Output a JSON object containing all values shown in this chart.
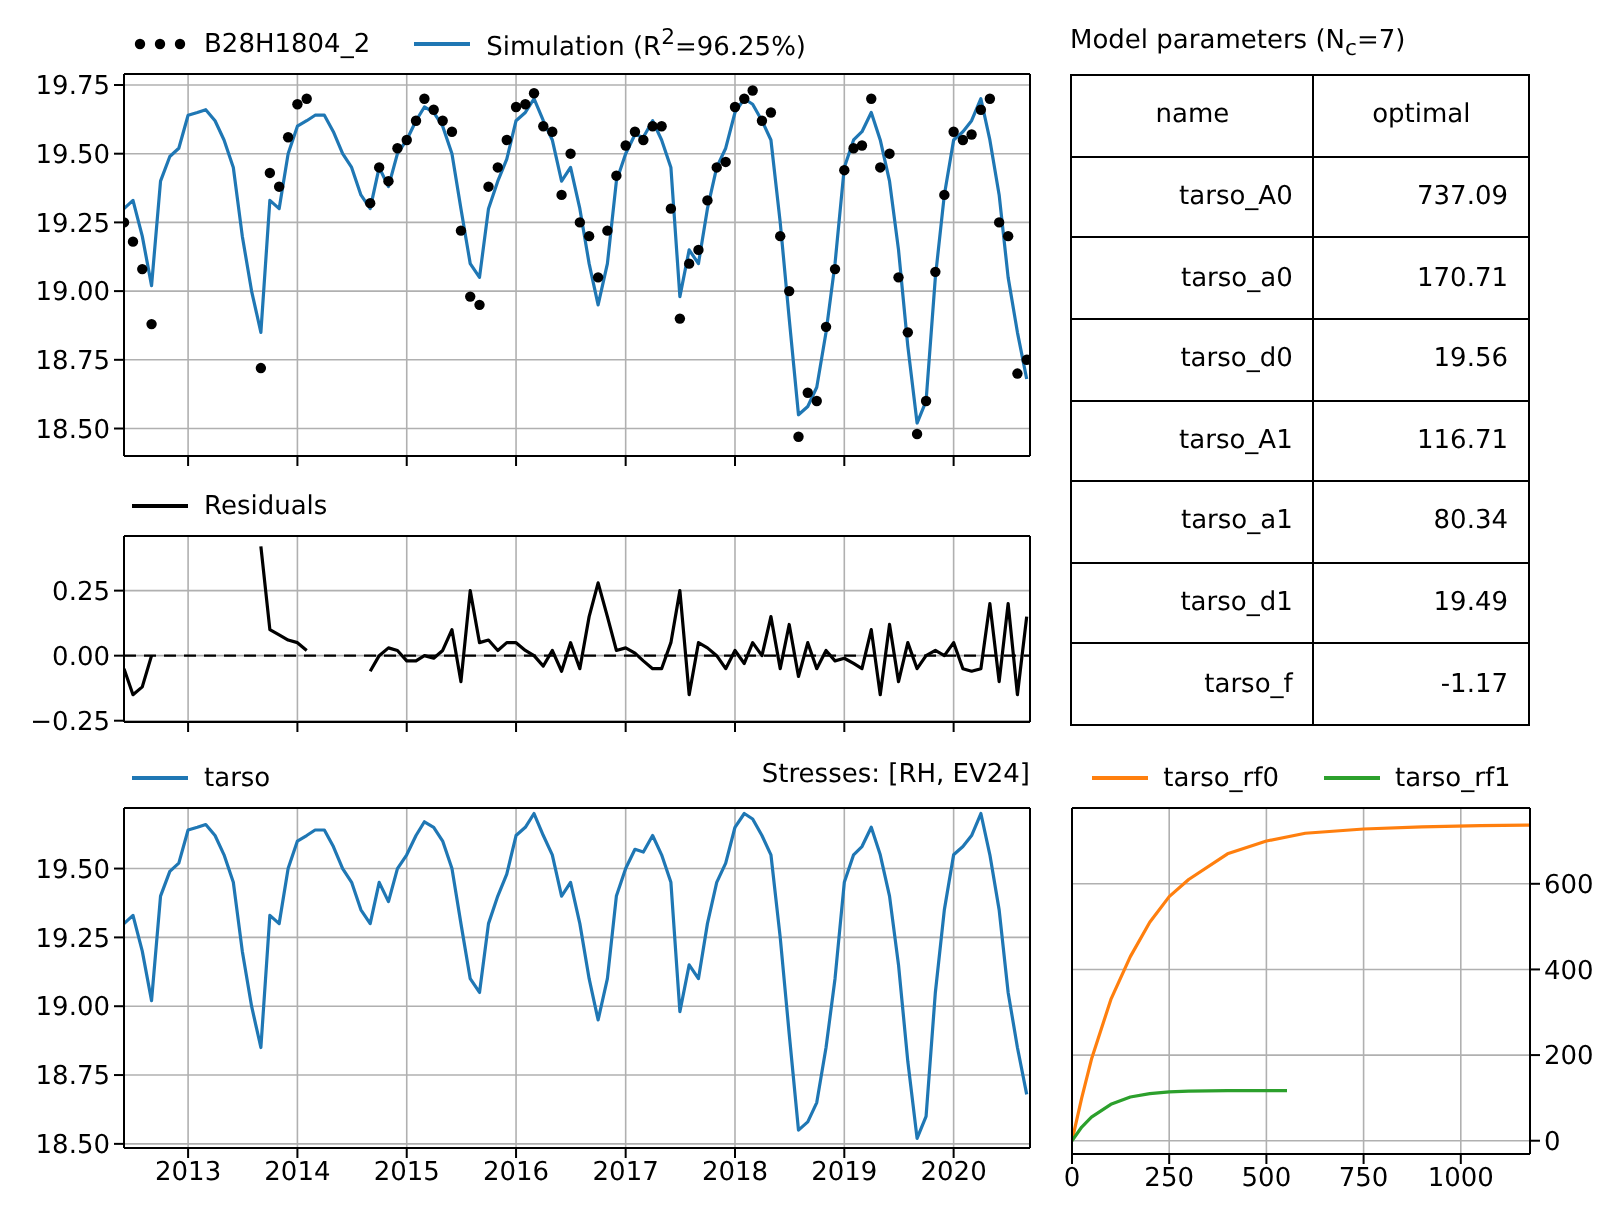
{
  "chart_data": [
    {
      "type": "line",
      "legend": "top left",
      "grid": true,
      "tick_labels": "y",
      "xlim": [
        "2012-06-01",
        "2020-09-12"
      ],
      "xticks": [
        "2013",
        "2014",
        "2015",
        "2016",
        "2017",
        "2018",
        "2019",
        "2020"
      ],
      "ylim": [
        18.4,
        19.79
      ],
      "yticks": [
        {
          "value": 18.5,
          "label": "18.50"
        },
        18.75,
        {
          "value": 19,
          "label": "19.00"
        },
        19.25,
        {
          "value": 19.5,
          "label": "19.50"
        },
        19.75
      ],
      "x": [
        "2012-06",
        "2012-07",
        "2012-08",
        "2012-09",
        "2012-10",
        "2012-11",
        "2012-12",
        "2013-01",
        "2013-02",
        "2013-03",
        "2013-04",
        "2013-05",
        "2013-06",
        "2013-07",
        "2013-08",
        "2013-09",
        "2013-10",
        "2013-11",
        "2013-12",
        "2014-01",
        "2014-02",
        "2014-03",
        "2014-04",
        "2014-05",
        "2014-06",
        "2014-07",
        "2014-08",
        "2014-09",
        "2014-10",
        "2014-11",
        "2014-12",
        "2015-01",
        "2015-02",
        "2015-03",
        "2015-04",
        "2015-05",
        "2015-06",
        "2015-07",
        "2015-08",
        "2015-09",
        "2015-10",
        "2015-11",
        "2015-12",
        "2016-01",
        "2016-02",
        "2016-03",
        "2016-04",
        "2016-05",
        "2016-06",
        "2016-07",
        "2016-08",
        "2016-09",
        "2016-10",
        "2016-11",
        "2016-12",
        "2017-01",
        "2017-02",
        "2017-03",
        "2017-04",
        "2017-05",
        "2017-06",
        "2017-07",
        "2017-08",
        "2017-09",
        "2017-10",
        "2017-11",
        "2017-12",
        "2018-01",
        "2018-02",
        "2018-03",
        "2018-04",
        "2018-05",
        "2018-06",
        "2018-07",
        "2018-08",
        "2018-09",
        "2018-10",
        "2018-11",
        "2018-12",
        "2019-01",
        "2019-02",
        "2019-03",
        "2019-04",
        "2019-05",
        "2019-06",
        "2019-07",
        "2019-08",
        "2019-09",
        "2019-10",
        "2019-11",
        "2019-12",
        "2020-01",
        "2020-02",
        "2020-03",
        "2020-04",
        "2020-05",
        "2020-06",
        "2020-07",
        "2020-08",
        "2020-09"
      ],
      "series": [
        {
          "name": "B28H1804_2",
          "type": "scatter",
          "marker": "circle",
          "color": "#000000",
          "x": [
            "2012-06",
            "2012-07",
            "2012-08",
            "2012-09",
            "2013-09",
            "2013-10",
            "2013-11",
            "2013-12",
            "2014-01",
            "2014-02",
            "2014-09",
            "2014-10",
            "2014-11",
            "2014-12",
            "2015-01",
            "2015-02",
            "2015-03",
            "2015-04",
            "2015-05",
            "2015-06",
            "2015-07",
            "2015-08",
            "2015-09",
            "2015-10",
            "2015-11",
            "2015-12",
            "2016-01",
            "2016-02",
            "2016-03",
            "2016-04",
            "2016-05",
            "2016-06",
            "2016-07",
            "2016-08",
            "2016-09",
            "2016-10",
            "2016-11",
            "2016-12",
            "2017-01",
            "2017-02",
            "2017-03",
            "2017-04",
            "2017-05",
            "2017-06",
            "2017-07",
            "2017-08",
            "2017-09",
            "2017-10",
            "2017-11",
            "2017-12",
            "2018-01",
            "2018-02",
            "2018-03",
            "2018-04",
            "2018-05",
            "2018-06",
            "2018-07",
            "2018-08",
            "2018-09",
            "2018-10",
            "2018-11",
            "2018-12",
            "2019-01",
            "2019-02",
            "2019-03",
            "2019-04",
            "2019-05",
            "2019-06",
            "2019-07",
            "2019-08",
            "2019-09",
            "2019-10",
            "2019-11",
            "2019-12",
            "2020-01",
            "2020-02",
            "2020-03",
            "2020-04",
            "2020-05",
            "2020-06",
            "2020-07",
            "2020-08",
            "2020-09"
          ],
          "values": [
            19.25,
            19.18,
            19.08,
            18.88,
            18.72,
            19.43,
            19.38,
            19.56,
            19.68,
            19.7,
            19.32,
            19.45,
            19.4,
            19.52,
            19.55,
            19.62,
            19.7,
            19.66,
            19.62,
            19.58,
            19.22,
            18.98,
            18.95,
            19.38,
            19.45,
            19.55,
            19.67,
            19.68,
            19.72,
            19.6,
            19.58,
            19.35,
            19.5,
            19.25,
            19.2,
            19.05,
            19.22,
            19.42,
            19.53,
            19.58,
            19.55,
            19.6,
            19.6,
            19.3,
            18.9,
            19.1,
            19.15,
            19.33,
            19.45,
            19.47,
            19.67,
            19.7,
            19.73,
            19.62,
            19.65,
            19.2,
            19.0,
            18.47,
            18.63,
            18.6,
            18.87,
            19.08,
            19.44,
            19.52,
            19.53,
            19.7,
            19.45,
            19.5,
            19.05,
            18.85,
            18.48,
            18.6,
            19.07,
            19.35,
            19.58,
            19.55,
            19.57,
            19.66,
            19.7,
            19.25,
            19.2,
            18.7,
            18.75
          ]
        },
        {
          "name": "Simulation (R$^{2}$=96.25%)",
          "type": "line",
          "color": "#1f77b4",
          "values": [
            19.3,
            19.33,
            19.2,
            19.02,
            19.4,
            19.49,
            19.52,
            19.64,
            19.65,
            19.66,
            19.62,
            19.55,
            19.45,
            19.2,
            19.0,
            18.85,
            19.33,
            19.3,
            19.5,
            19.6,
            19.62,
            19.64,
            19.64,
            19.58,
            19.5,
            19.45,
            19.35,
            19.3,
            19.45,
            19.38,
            19.5,
            19.55,
            19.62,
            19.67,
            19.65,
            19.6,
            19.5,
            19.3,
            19.1,
            19.05,
            19.3,
            19.4,
            19.48,
            19.62,
            19.65,
            19.7,
            19.62,
            19.55,
            19.4,
            19.45,
            19.3,
            19.1,
            18.95,
            19.1,
            19.4,
            19.5,
            19.57,
            19.56,
            19.62,
            19.55,
            19.45,
            18.98,
            19.15,
            19.1,
            19.3,
            19.45,
            19.52,
            19.65,
            19.7,
            19.68,
            19.62,
            19.55,
            19.25,
            18.9,
            18.55,
            18.58,
            18.65,
            18.85,
            19.1,
            19.45,
            19.55,
            19.58,
            19.65,
            19.55,
            19.4,
            19.15,
            18.8,
            18.52,
            18.6,
            19.05,
            19.35,
            19.55,
            19.58,
            19.62,
            19.7,
            19.55,
            19.35,
            19.05,
            18.85,
            18.68
          ]
        }
      ]
    },
    {
      "type": "line",
      "legend": "top left",
      "grid": true,
      "tick_labels": "y",
      "xlim": [
        "2012-06-01",
        "2020-09-12"
      ],
      "xticks": [
        "2013",
        "2014",
        "2015",
        "2016",
        "2017",
        "2018",
        "2019",
        "2020"
      ],
      "ylim": [
        -0.255,
        0.46
      ],
      "yticks": [
        {
          "value": -0.25,
          "label": "−0.25"
        },
        {
          "value": 0,
          "label": "0.00"
        },
        0.25
      ],
      "ref_lines": [
        {
          "axis": "y",
          "value": 0,
          "color": "#000000",
          "line_style": "dashed"
        }
      ],
      "x": [
        "2012-06",
        "2012-07",
        "2012-08",
        "2012-09",
        "2012-10",
        "2012-11",
        "2012-12",
        "2013-01",
        "2013-02",
        "2013-03",
        "2013-04",
        "2013-05",
        "2013-06",
        "2013-07",
        "2013-08",
        "2013-09",
        "2013-10",
        "2013-11",
        "2013-12",
        "2014-01",
        "2014-02",
        "2014-03",
        "2014-04",
        "2014-05",
        "2014-06",
        "2014-07",
        "2014-08",
        "2014-09",
        "2014-10",
        "2014-11",
        "2014-12",
        "2015-01",
        "2015-02",
        "2015-03",
        "2015-04",
        "2015-05",
        "2015-06",
        "2015-07",
        "2015-08",
        "2015-09",
        "2015-10",
        "2015-11",
        "2015-12",
        "2016-01",
        "2016-02",
        "2016-03",
        "2016-04",
        "2016-05",
        "2016-06",
        "2016-07",
        "2016-08",
        "2016-09",
        "2016-10",
        "2016-11",
        "2016-12",
        "2017-01",
        "2017-02",
        "2017-03",
        "2017-04",
        "2017-05",
        "2017-06",
        "2017-07",
        "2017-08",
        "2017-09",
        "2017-10",
        "2017-11",
        "2017-12",
        "2018-01",
        "2018-02",
        "2018-03",
        "2018-04",
        "2018-05",
        "2018-06",
        "2018-07",
        "2018-08",
        "2018-09",
        "2018-10",
        "2018-11",
        "2018-12",
        "2019-01",
        "2019-02",
        "2019-03",
        "2019-04",
        "2019-05",
        "2019-06",
        "2019-07",
        "2019-08",
        "2019-09",
        "2019-10",
        "2019-11",
        "2019-12",
        "2020-01",
        "2020-02",
        "2020-03",
        "2020-04",
        "2020-05",
        "2020-06",
        "2020-07",
        "2020-08",
        "2020-09"
      ],
      "series": [
        {
          "name": "Residuals",
          "color": "#000000",
          "values": [
            -0.05,
            -0.15,
            -0.12,
            0.0,
            null,
            null,
            null,
            null,
            null,
            null,
            null,
            null,
            null,
            null,
            null,
            0.42,
            0.1,
            0.08,
            0.06,
            0.05,
            0.02,
            null,
            null,
            null,
            null,
            null,
            null,
            -0.06,
            0.0,
            0.03,
            0.02,
            -0.02,
            -0.02,
            0.0,
            -0.01,
            0.02,
            0.1,
            -0.1,
            0.25,
            0.05,
            0.06,
            0.02,
            0.05,
            0.05,
            0.02,
            0.0,
            -0.04,
            0.02,
            -0.06,
            0.05,
            -0.05,
            0.15,
            0.28,
            0.15,
            0.02,
            0.03,
            0.01,
            -0.02,
            -0.05,
            -0.05,
            0.05,
            0.25,
            -0.15,
            0.05,
            0.03,
            0.0,
            -0.05,
            0.02,
            -0.03,
            0.05,
            0.0,
            0.15,
            -0.05,
            0.12,
            -0.08,
            0.05,
            -0.05,
            0.02,
            -0.02,
            -0.01,
            -0.03,
            -0.05,
            0.1,
            -0.15,
            0.12,
            -0.1,
            0.05,
            -0.05,
            0.0,
            0.02,
            0.0,
            0.05,
            -0.05,
            -0.06,
            -0.05,
            0.2,
            -0.1,
            0.2,
            -0.15,
            0.15
          ]
        }
      ]
    },
    {
      "type": "other",
      "title": "Model parameters (N$_{c}$=7)",
      "annotations": [
        "name",
        "optimal",
        "tarso_A0",
        "737.09",
        "tarso_a0",
        "170.71",
        "tarso_d0",
        "19.56",
        "tarso_A1",
        "116.71",
        "tarso_a1",
        "80.34",
        "tarso_d1",
        "19.49",
        "tarso_f",
        "-1.17"
      ]
    },
    {
      "type": "line",
      "title": "Stresses: [RH, EV24]",
      "legend": "top left",
      "grid": true,
      "xlim": [
        "2012-06-01",
        "2020-09-12"
      ],
      "xticks": [
        "2013",
        "2014",
        "2015",
        "2016",
        "2017",
        "2018",
        "2019",
        "2020"
      ],
      "ylim": [
        18.485,
        19.72
      ],
      "yticks": [
        {
          "value": 18.5,
          "label": "18.50"
        },
        18.75,
        {
          "value": 19,
          "label": "19.00"
        },
        19.25,
        {
          "value": 19.5,
          "label": "19.50"
        }
      ],
      "x": [
        "2012-06",
        "2012-07",
        "2012-08",
        "2012-09",
        "2012-10",
        "2012-11",
        "2012-12",
        "2013-01",
        "2013-02",
        "2013-03",
        "2013-04",
        "2013-05",
        "2013-06",
        "2013-07",
        "2013-08",
        "2013-09",
        "2013-10",
        "2013-11",
        "2013-12",
        "2014-01",
        "2014-02",
        "2014-03",
        "2014-04",
        "2014-05",
        "2014-06",
        "2014-07",
        "2014-08",
        "2014-09",
        "2014-10",
        "2014-11",
        "2014-12",
        "2015-01",
        "2015-02",
        "2015-03",
        "2015-04",
        "2015-05",
        "2015-06",
        "2015-07",
        "2015-08",
        "2015-09",
        "2015-10",
        "2015-11",
        "2015-12",
        "2016-01",
        "2016-02",
        "2016-03",
        "2016-04",
        "2016-05",
        "2016-06",
        "2016-07",
        "2016-08",
        "2016-09",
        "2016-10",
        "2016-11",
        "2016-12",
        "2017-01",
        "2017-02",
        "2017-03",
        "2017-04",
        "2017-05",
        "2017-06",
        "2017-07",
        "2017-08",
        "2017-09",
        "2017-10",
        "2017-11",
        "2017-12",
        "2018-01",
        "2018-02",
        "2018-03",
        "2018-04",
        "2018-05",
        "2018-06",
        "2018-07",
        "2018-08",
        "2018-09",
        "2018-10",
        "2018-11",
        "2018-12",
        "2019-01",
        "2019-02",
        "2019-03",
        "2019-04",
        "2019-05",
        "2019-06",
        "2019-07",
        "2019-08",
        "2019-09",
        "2019-10",
        "2019-11",
        "2019-12",
        "2020-01",
        "2020-02",
        "2020-03",
        "2020-04",
        "2020-05",
        "2020-06",
        "2020-07",
        "2020-08",
        "2020-09"
      ],
      "series": [
        {
          "name": "tarso",
          "color": "#1f77b4",
          "values": [
            19.3,
            19.33,
            19.2,
            19.02,
            19.4,
            19.49,
            19.52,
            19.64,
            19.65,
            19.66,
            19.62,
            19.55,
            19.45,
            19.2,
            19.0,
            18.85,
            19.33,
            19.3,
            19.5,
            19.6,
            19.62,
            19.64,
            19.64,
            19.58,
            19.5,
            19.45,
            19.35,
            19.3,
            19.45,
            19.38,
            19.5,
            19.55,
            19.62,
            19.67,
            19.65,
            19.6,
            19.5,
            19.3,
            19.1,
            19.05,
            19.3,
            19.4,
            19.48,
            19.62,
            19.65,
            19.7,
            19.62,
            19.55,
            19.4,
            19.45,
            19.3,
            19.1,
            18.95,
            19.1,
            19.4,
            19.5,
            19.57,
            19.56,
            19.62,
            19.55,
            19.45,
            18.98,
            19.15,
            19.1,
            19.3,
            19.45,
            19.52,
            19.65,
            19.7,
            19.68,
            19.62,
            19.55,
            19.25,
            18.9,
            18.55,
            18.58,
            18.65,
            18.85,
            19.1,
            19.45,
            19.55,
            19.58,
            19.65,
            19.55,
            19.4,
            19.15,
            18.8,
            18.52,
            18.6,
            19.05,
            19.35,
            19.55,
            19.58,
            19.62,
            19.7,
            19.55,
            19.35,
            19.05,
            18.85,
            18.68
          ]
        }
      ]
    },
    {
      "type": "line",
      "legend": "top",
      "grid": true,
      "xlim": [
        0,
        1178
      ],
      "xticks": [
        0,
        250,
        500,
        750,
        1000
      ],
      "y2lim": [
        -31,
        777
      ],
      "y2ticks": [
        0,
        200,
        400,
        600
      ],
      "series": [
        {
          "name": "tarso_rf0",
          "color": "#ff7f0e",
          "axis": "y2",
          "x": [
            0,
            25,
            50,
            100,
            150,
            200,
            250,
            300,
            400,
            500,
            600,
            750,
            900,
            1050,
            1178
          ],
          "values": [
            0,
            100,
            190,
            330,
            430,
            510,
            570,
            610,
            670,
            700,
            718,
            728,
            733,
            736,
            737
          ]
        },
        {
          "name": "tarso_rf1",
          "color": "#2ca02c",
          "axis": "y2",
          "x": [
            0,
            25,
            50,
            100,
            150,
            200,
            250,
            300,
            400,
            553
          ],
          "values": [
            0,
            32,
            55,
            85,
            102,
            110,
            114,
            116,
            117,
            117
          ]
        }
      ]
    }
  ]
}
